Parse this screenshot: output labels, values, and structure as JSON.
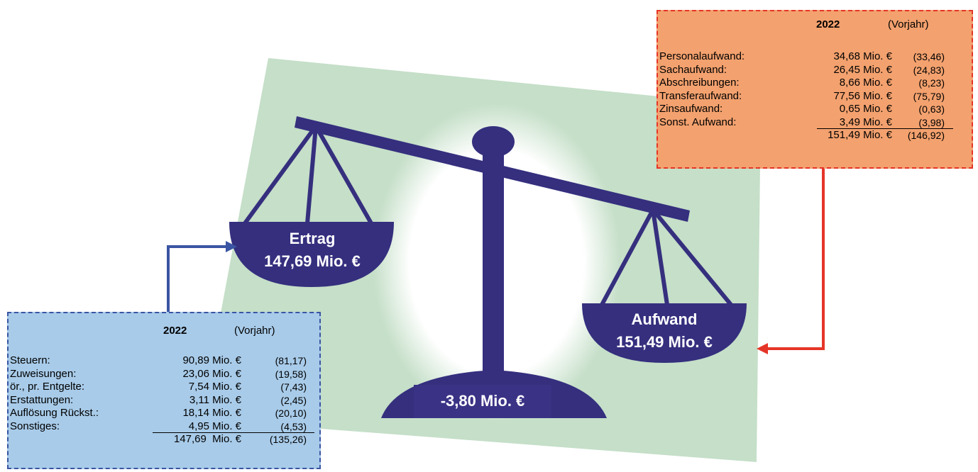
{
  "scale": {
    "left_title": "Ertrag",
    "left_value": "147,69 Mio. €",
    "right_title": "Aufwand",
    "right_value": "151,49 Mio. €",
    "balance": "-3,80 Mio. €"
  },
  "income": {
    "header": {
      "year": "2022",
      "prior": "(Vorjahr)"
    },
    "rows": [
      {
        "label": "Steuern:",
        "value": "90,89 Mio. €",
        "prior": "(81,17)"
      },
      {
        "label": "Zuweisungen:",
        "value": "23,06 Mio. €",
        "prior": "(19,58)"
      },
      {
        "label": "ör., pr. Entgelte:",
        "value": "7,54 Mio. €",
        "prior": "(7,43)"
      },
      {
        "label": "Erstattungen:",
        "value": "3,11 Mio. €",
        "prior": "(2,45)"
      },
      {
        "label": "Auflösung Rückst.:",
        "value": "18,14 Mio. €",
        "prior": "(20,10)"
      },
      {
        "label": "Sonstiges:",
        "value": "4,95 Mio. €",
        "prior": "(4,53)"
      }
    ],
    "total": {
      "value": "147,69  Mio. €",
      "prior": "(135,26)"
    }
  },
  "expenses": {
    "header": {
      "year": "2022",
      "prior": "(Vorjahr)"
    },
    "rows": [
      {
        "label": "Personalaufwand:",
        "value": "34,68 Mio. €",
        "prior": "(33,46)"
      },
      {
        "label": "Sachaufwand:",
        "value": "26,45 Mio. €",
        "prior": "(24,83)"
      },
      {
        "label": "Abschreibungen:",
        "value": "8,66 Mio. €",
        "prior": "(8,23)"
      },
      {
        "label": "Transferaufwand:",
        "value": "77,56 Mio. €",
        "prior": "(75,79)"
      },
      {
        "label": "Zinsaufwand:",
        "value": "0,65 Mio. €",
        "prior": "(0,63)"
      },
      {
        "label": "Sonst. Aufwand:",
        "value": "3,49 Mio. €",
        "prior": "(3,98)"
      }
    ],
    "total": {
      "value": "151,49 Mio. €",
      "prior": "(146,92)"
    }
  }
}
